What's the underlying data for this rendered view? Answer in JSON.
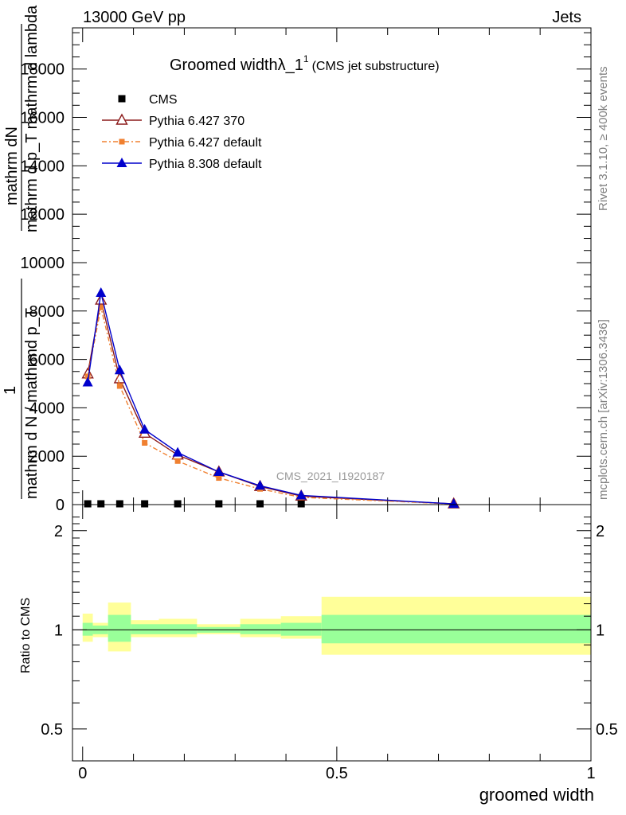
{
  "header": {
    "energy_label": "13000 GeV pp",
    "category": "Jets",
    "side_rivet": "Rivet 3.1.10, ≥ 400k events",
    "side_mcplots": "mcplots.cern.ch [arXiv:1306.3436]",
    "watermark": "CMS_2021_I1920187"
  },
  "chart_data": [
    {
      "type": "line",
      "title_main": "Groomed widthλ_1",
      "title_sup": "1",
      "title_sub": "(CMS jet substructure)",
      "ylabel_top": "mathrm dN",
      "ylabel_top_den": "mathrm d p_T mathrm d lambda",
      "ylabel_one": "1",
      "ylabel_bottom": "mathrm d N / mathrmd p_T",
      "xlim": [
        -0.02,
        1.0
      ],
      "ylim": [
        0,
        19700
      ],
      "y_ticks": [
        0,
        2000,
        4000,
        6000,
        8000,
        10000,
        12000,
        14000,
        16000,
        18000
      ],
      "y_tick_labels": [
        "0",
        "2000",
        "4000",
        "6000",
        "8000",
        "10000",
        "12000",
        "14000",
        "16000",
        "18000"
      ],
      "x": [
        0.01,
        0.036,
        0.073,
        0.122,
        0.187,
        0.268,
        0.349,
        0.43,
        0.73
      ],
      "series": [
        {
          "name": "CMS",
          "color": "#000000",
          "marker": "square",
          "values": [
            40,
            40,
            40,
            40,
            40,
            40,
            40,
            40,
            0
          ]
        },
        {
          "name": "Pythia 6.427 370",
          "color": "#8b1a1a",
          "marker": "triangle-open",
          "dash": "",
          "values": [
            5400,
            8450,
            5200,
            2950,
            2050,
            1350,
            750,
            350,
            30
          ]
        },
        {
          "name": "Pythia 6.427 default",
          "color": "#f08030",
          "marker": "square-small",
          "dash": "6,3,2,3",
          "values": [
            5300,
            8150,
            4900,
            2550,
            1800,
            1100,
            650,
            300,
            25
          ]
        },
        {
          "name": "Pythia 8.308 default",
          "color": "#0000cc",
          "marker": "triangle-filled",
          "dash": "",
          "values": [
            5050,
            8750,
            5550,
            3100,
            2150,
            1350,
            780,
            380,
            30
          ]
        }
      ],
      "legend_position": "top-left"
    },
    {
      "type": "area",
      "ylabel": "Ratio to CMS",
      "xlabel": "groomed width",
      "scale": "log",
      "ylim": [
        0.4,
        2.4
      ],
      "y_ticks": [
        0.5,
        1,
        2
      ],
      "y_tick_labels": [
        "0.5",
        "1",
        "2"
      ],
      "x_ticks": [
        0,
        0.5,
        1
      ],
      "x_tick_labels": [
        "0",
        "0.5",
        "1"
      ],
      "reference": 1,
      "bins": [
        {
          "lo": 0.0,
          "hi": 0.02,
          "inner": [
            0.96,
            1.05
          ],
          "outer": [
            0.92,
            1.12
          ]
        },
        {
          "lo": 0.02,
          "hi": 0.05,
          "inner": [
            0.97,
            1.03
          ],
          "outer": [
            0.95,
            1.05
          ]
        },
        {
          "lo": 0.05,
          "hi": 0.095,
          "inner": [
            0.92,
            1.11
          ],
          "outer": [
            0.86,
            1.21
          ]
        },
        {
          "lo": 0.095,
          "hi": 0.15,
          "inner": [
            0.97,
            1.04
          ],
          "outer": [
            0.95,
            1.07
          ]
        },
        {
          "lo": 0.15,
          "hi": 0.225,
          "inner": [
            0.97,
            1.04
          ],
          "outer": [
            0.95,
            1.08
          ]
        },
        {
          "lo": 0.225,
          "hi": 0.31,
          "inner": [
            0.98,
            1.02
          ],
          "outer": [
            0.97,
            1.04
          ]
        },
        {
          "lo": 0.31,
          "hi": 0.39,
          "inner": [
            0.97,
            1.04
          ],
          "outer": [
            0.95,
            1.08
          ]
        },
        {
          "lo": 0.39,
          "hi": 0.47,
          "inner": [
            0.96,
            1.05
          ],
          "outer": [
            0.94,
            1.1
          ]
        },
        {
          "lo": 0.47,
          "hi": 1.0,
          "inner": [
            0.91,
            1.11
          ],
          "outer": [
            0.84,
            1.26
          ]
        }
      ],
      "band_colors": {
        "outer": "#ffff99",
        "inner": "#99ff99"
      }
    }
  ]
}
